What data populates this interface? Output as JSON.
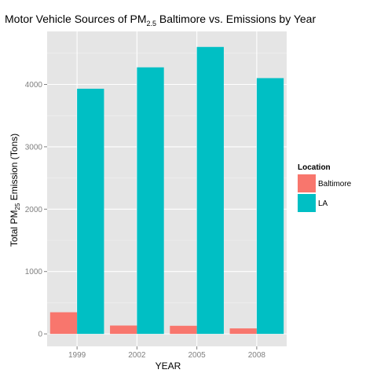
{
  "chart_data": {
    "type": "bar",
    "title": "Motor Vehicle  Sources of PM2.5 Baltimore vs. Emissions by Year",
    "title_parts": {
      "before": "Motor Vehicle  Sources of PM",
      "sub": "2.5",
      "after": " Baltimore vs. Emissions by Year"
    },
    "xlabel": "YEAR",
    "ylabel": "Total PM25 Emission (Tons)",
    "ylabel_parts": {
      "before": "Total PM",
      "sub": "25",
      "after": " Emission (Tons)"
    },
    "categories": [
      "1999",
      "2002",
      "2005",
      "2008"
    ],
    "series": [
      {
        "name": "Baltimore",
        "color": "#F8766D",
        "values": [
          347,
          134,
          130,
          88
        ]
      },
      {
        "name": "LA",
        "color": "#00BFC4",
        "values": [
          3931,
          4274,
          4601,
          4101
        ]
      }
    ],
    "ylim": [
      -200,
      4850
    ],
    "y_ticks": [
      0,
      1000,
      2000,
      3000,
      4000
    ],
    "y_tick_labels": [
      "0",
      "1000",
      "2000",
      "3000",
      "4000"
    ],
    "grid": true,
    "panel_background": "#E5E5E5",
    "legend": {
      "title": "Location",
      "position": "right"
    }
  }
}
